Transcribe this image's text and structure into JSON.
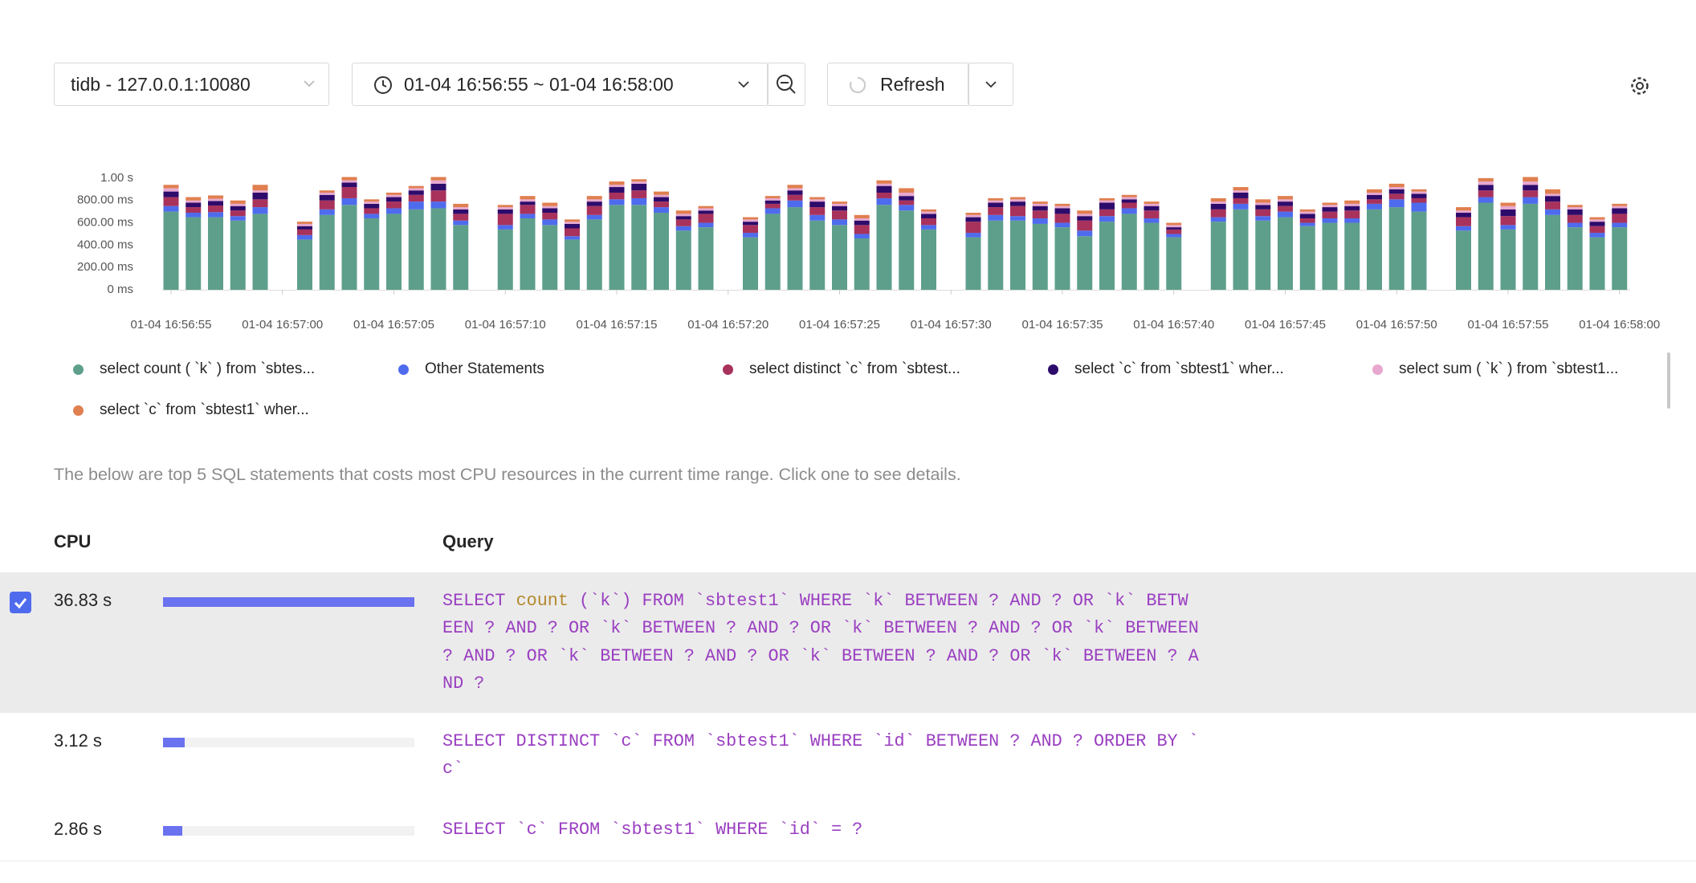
{
  "toolbar": {
    "instance": "tidb - 127.0.0.1:10080",
    "time_range": "01-04 16:56:55 ~ 01-04 16:58:00",
    "refresh": "Refresh"
  },
  "chart_data": {
    "type": "bar",
    "stacked": true,
    "grid": false,
    "categories": [
      "01-04 16:56:55",
      null,
      null,
      null,
      null,
      "01-04 16:57:00",
      null,
      null,
      null,
      null,
      "01-04 16:57:05",
      null,
      null,
      null,
      null,
      "01-04 16:57:10",
      null,
      null,
      null,
      null,
      "01-04 16:57:15",
      null,
      null,
      null,
      null,
      "01-04 16:57:20",
      null,
      null,
      null,
      null,
      "01-04 16:57:25",
      null,
      null,
      null,
      null,
      "01-04 16:57:30",
      null,
      null,
      null,
      null,
      "01-04 16:57:35",
      null,
      null,
      null,
      null,
      "01-04 16:57:40",
      null,
      null,
      null,
      null,
      "01-04 16:57:45",
      null,
      null,
      null,
      null,
      "01-04 16:57:50",
      null,
      null,
      null,
      null,
      "01-04 16:57:55",
      null,
      null,
      null,
      null,
      "01-04 16:58:00"
    ],
    "ylim": [
      0,
      1100
    ],
    "yticks": [
      {
        "value": 0,
        "label": "0 ms"
      },
      {
        "value": 200,
        "label": "200.00 ms"
      },
      {
        "value": 400,
        "label": "400.00 ms"
      },
      {
        "value": 600,
        "label": "600.00 ms"
      },
      {
        "value": 800,
        "label": "800.00 ms"
      },
      {
        "value": 1000,
        "label": "1.00 s"
      }
    ],
    "series": [
      {
        "name": "select count ( `k` ) from `sbtes...",
        "color": "#5e9f8c",
        "values": [
          700,
          650,
          650,
          620,
          680,
          null,
          450,
          670,
          760,
          640,
          680,
          720,
          730,
          580,
          null,
          540,
          640,
          580,
          450,
          630,
          760,
          760,
          690,
          530,
          560,
          null,
          470,
          680,
          740,
          620,
          580,
          460,
          760,
          710,
          540,
          null,
          470,
          620,
          620,
          590,
          560,
          480,
          610,
          680,
          600,
          470,
          null,
          610,
          720,
          620,
          650,
          570,
          600,
          600,
          720,
          740,
          700,
          null,
          530,
          780,
          540,
          770,
          670,
          560,
          470,
          560
        ]
      },
      {
        "name": "Other Statements",
        "color": "#4f6bed",
        "values": [
          50,
          40,
          45,
          40,
          60,
          null,
          40,
          50,
          60,
          40,
          50,
          70,
          60,
          40,
          null,
          40,
          40,
          50,
          30,
          40,
          50,
          60,
          50,
          40,
          40,
          null,
          40,
          50,
          60,
          50,
          50,
          40,
          60,
          50,
          40,
          null,
          40,
          50,
          40,
          50,
          40,
          50,
          50,
          50,
          40,
          30,
          null,
          40,
          50,
          40,
          50,
          30,
          40,
          40,
          50,
          70,
          80,
          null,
          40,
          50,
          40,
          60,
          50,
          40,
          40,
          40
        ]
      },
      {
        "name": "select distinct `c` from `sbtest...",
        "color": "#a8325c",
        "values": [
          80,
          50,
          60,
          50,
          70,
          null,
          50,
          80,
          100,
          50,
          60,
          60,
          100,
          60,
          null,
          100,
          80,
          60,
          70,
          80,
          60,
          70,
          50,
          60,
          80,
          null,
          70,
          40,
          50,
          70,
          80,
          80,
          50,
          40,
          60,
          null,
          100,
          70,
          90,
          70,
          80,
          90,
          60,
          50,
          70,
          40,
          null,
          70,
          50,
          60,
          50,
          40,
          60,
          70,
          40,
          50,
          40,
          null,
          80,
          60,
          80,
          60,
          70,
          70,
          60,
          80
        ]
      },
      {
        "name": "select `c` from `sbtest1` wher...",
        "color": "#2d0b6b",
        "values": [
          50,
          40,
          40,
          40,
          60,
          null,
          30,
          50,
          40,
          40,
          40,
          40,
          60,
          40,
          null,
          40,
          30,
          40,
          40,
          40,
          50,
          60,
          40,
          30,
          30,
          null,
          30,
          30,
          40,
          50,
          40,
          40,
          60,
          40,
          40,
          null,
          40,
          40,
          40,
          40,
          50,
          40,
          60,
          30,
          40,
          20,
          null,
          50,
          50,
          40,
          40,
          40,
          40,
          40,
          40,
          40,
          40,
          null,
          40,
          50,
          60,
          50,
          50,
          50,
          40,
          50
        ]
      },
      {
        "name": "select sum ( `k` ) from `sbtest1...",
        "color": "#e7a7cf",
        "values": [
          30,
          20,
          20,
          20,
          20,
          null,
          20,
          20,
          20,
          20,
          20,
          20,
          30,
          20,
          null,
          20,
          20,
          20,
          20,
          20,
          20,
          20,
          20,
          20,
          20,
          null,
          20,
          20,
          20,
          20,
          20,
          20,
          20,
          30,
          20,
          null,
          20,
          20,
          20,
          20,
          20,
          20,
          20,
          20,
          20,
          20,
          null,
          20,
          20,
          20,
          20,
          20,
          20,
          20,
          20,
          20,
          20,
          null,
          20,
          30,
          30,
          30,
          20,
          20,
          20,
          20
        ]
      },
      {
        "name": "select `c` from `sbtest1` wher...",
        "color": "#e07f4f",
        "values": [
          30,
          30,
          30,
          30,
          50,
          null,
          20,
          20,
          30,
          20,
          20,
          20,
          30,
          30,
          null,
          20,
          30,
          30,
          20,
          30,
          30,
          20,
          30,
          30,
          20,
          null,
          20,
          20,
          30,
          20,
          20,
          30,
          30,
          40,
          20,
          null,
          20,
          20,
          20,
          20,
          20,
          30,
          20,
          20,
          20,
          20,
          null,
          30,
          30,
          30,
          30,
          20,
          20,
          30,
          30,
          30,
          20,
          null,
          30,
          30,
          30,
          40,
          40,
          20,
          20,
          20
        ]
      }
    ]
  },
  "description": "The below are top 5 SQL statements that costs most CPU resources in the current time range. Click one to see details.",
  "table": {
    "headers": [
      "CPU",
      "Query"
    ],
    "selected": 0,
    "bar_color": "#6b72ef",
    "rows": [
      {
        "cpu": 36.83,
        "cpu_label": "36.83 s",
        "query": "SELECT count (`k`) FROM `sbtest1` WHERE `k` BETWEEN ? AND ? OR `k` BETWEEN ? AND ? OR `k` BETWEEN ? AND ? OR `k` BETWEEN ? AND ? OR `k` BETWEEN ? AND ? OR `k` BETWEEN ? AND ? OR `k` BETWEEN ? AND ? OR `k` BETWEEN ? AND ?"
      },
      {
        "cpu": 3.12,
        "cpu_label": "3.12 s",
        "query": "SELECT DISTINCT `c` FROM `sbtest1` WHERE `id` BETWEEN ? AND ? ORDER BY `c`"
      },
      {
        "cpu": 2.86,
        "cpu_label": "2.86 s",
        "query": "SELECT `c` FROM `sbtest1` WHERE `id` = ?"
      }
    ]
  }
}
